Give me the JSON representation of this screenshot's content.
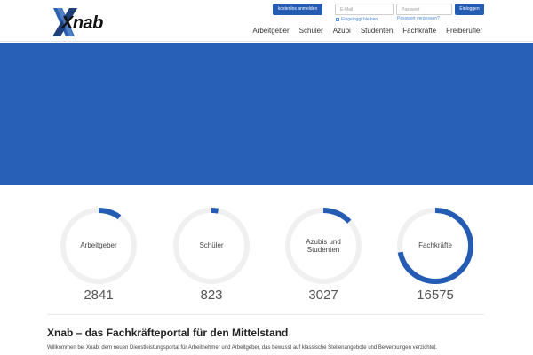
{
  "brand": {
    "logo_text": "Xnab",
    "accent": "#245bb3",
    "hero_color": "#2860b8"
  },
  "header": {
    "register_label": "kostenlos anmelden",
    "email_placeholder": "E-Mail",
    "password_placeholder": "Passwort",
    "login_label": "Einloggen",
    "remember_label": "Eingeloggt bleiben",
    "forgot_label": "Passwort vergessen?"
  },
  "nav": {
    "items": [
      "Arbeitgeber",
      "Schüler",
      "Azubi",
      "Studenten",
      "Fachkräfte",
      "Freiberufler"
    ]
  },
  "stats": [
    {
      "label": "Arbeitgeber",
      "value": "2841",
      "fill": 0.1
    },
    {
      "label": "Schüler",
      "value": "823",
      "fill": 0.03
    },
    {
      "label": "Azubis und Studenten",
      "value": "3027",
      "fill": 0.13
    },
    {
      "label": "Fachkräfte",
      "value": "16575",
      "fill": 0.72
    }
  ],
  "main": {
    "headline": "Xnab – das Fachkräfteportal für den Mittelstand",
    "intro": "Willkommen bei Xnab, dem neuen Dienstleistungsportal für Arbeitnehmer und Arbeitgeber, das bewusst auf klassische Stellenangebote und Bewerbungen verzichtet."
  }
}
